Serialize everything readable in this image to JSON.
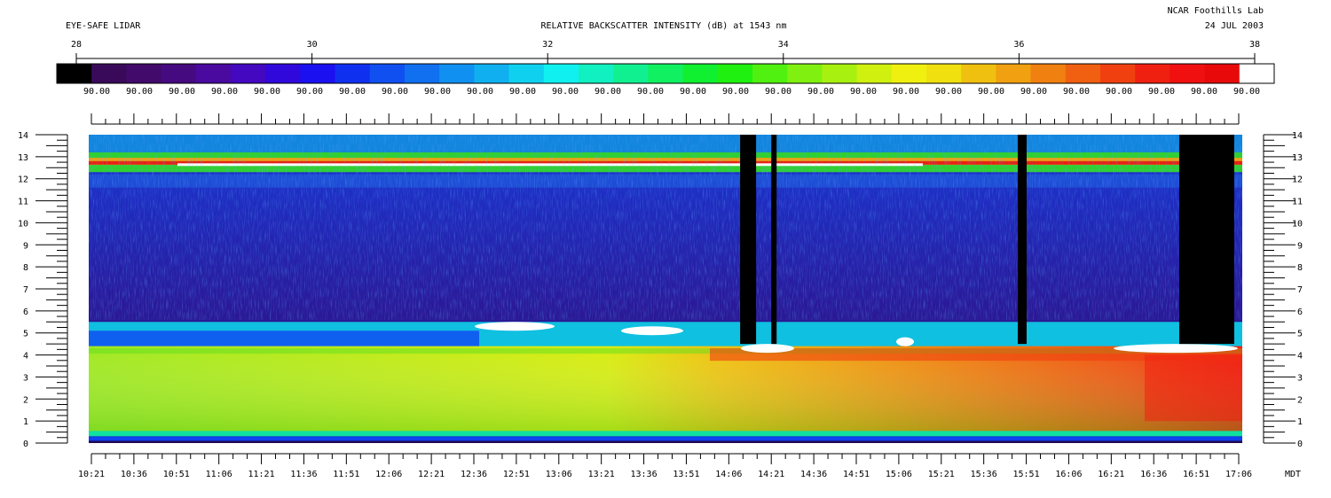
{
  "header": {
    "instrument": "EYE-SAFE LIDAR",
    "title": "RELATIVE BACKSCATTER INTENSITY (dB) at 1543 nm",
    "site": "NCAR Foothills Lab",
    "date": "24 JUL 2003"
  },
  "colorbar": {
    "ticks": [
      "28",
      "30",
      "32",
      "34",
      "36",
      "38"
    ],
    "range": [
      28,
      38
    ],
    "cell_label": "90.00",
    "colors": [
      "#000000",
      "#3a0a5a",
      "#420a6a",
      "#460a80",
      "#4a0aa0",
      "#4408c0",
      "#3008dc",
      "#1a10f0",
      "#1030f0",
      "#1050f0",
      "#1070f0",
      "#1090f0",
      "#10b0f0",
      "#10d0f0",
      "#10f0f0",
      "#10f0c0",
      "#10f090",
      "#10f060",
      "#10f030",
      "#20f010",
      "#50f010",
      "#80f010",
      "#a8f010",
      "#d0f010",
      "#f0f010",
      "#f0e010",
      "#f0c010",
      "#f0a010",
      "#f08010",
      "#f06010",
      "#f04010",
      "#f02010",
      "#f01010",
      "#e80a0a",
      "#ffffff"
    ]
  },
  "chart_data": {
    "type": "heatmap",
    "title": "RELATIVE BACKSCATTER INTENSITY (dB) at 1543 nm",
    "y_ticks": [
      "0",
      "1",
      "2",
      "3",
      "4",
      "5",
      "6",
      "7",
      "8",
      "9",
      "10",
      "11",
      "12",
      "13",
      "14"
    ],
    "ylim": [
      0,
      14
    ],
    "x_ticks": [
      "10:21",
      "10:36",
      "10:51",
      "11:06",
      "11:21",
      "11:36",
      "11:51",
      "12:06",
      "12:21",
      "12:36",
      "12:51",
      "13:06",
      "13:21",
      "13:36",
      "13:51",
      "14:06",
      "14:21",
      "14:36",
      "14:51",
      "15:06",
      "15:21",
      "15:36",
      "15:51",
      "16:06",
      "16:21",
      "16:36",
      "16:51",
      "17:06"
    ],
    "x_unit": "MDT",
    "colorscale_range_db": [
      28,
      38
    ],
    "features": {
      "cirrus_layer_km": [
        12.3,
        13.2
      ],
      "boundary_layer_top_km": [
        4.0,
        5.5
      ],
      "dropouts_time": [
        "14:10",
        "14:21",
        "15:48",
        "16:45"
      ]
    }
  }
}
